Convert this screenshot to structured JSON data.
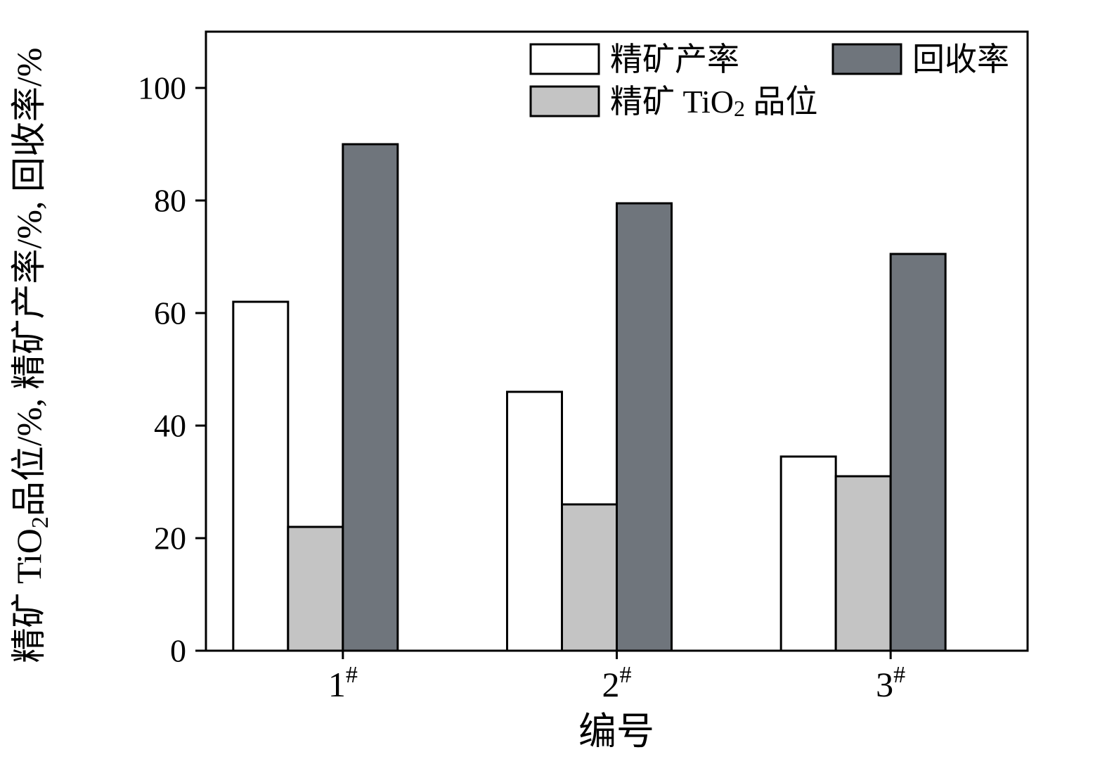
{
  "chart_data": {
    "type": "bar",
    "title": "",
    "xlabel": "编号",
    "ylabel": "精矿 TiO2品位/%, 精矿产率/%, 回收率/%",
    "categories": [
      "1#",
      "2#",
      "3#"
    ],
    "series": [
      {
        "name": "精矿产率",
        "fill": "#ffffff",
        "values": [
          62,
          46,
          34.5
        ]
      },
      {
        "name": "精矿 TiO2 品位",
        "fill": "#c4c4c4",
        "values": [
          22,
          26,
          31
        ]
      },
      {
        "name": "回收率",
        "fill": "#6f757c",
        "values": [
          90,
          79.5,
          70.5
        ]
      }
    ],
    "ylim": [
      0,
      110
    ],
    "yticks": [
      0,
      20,
      40,
      60,
      80,
      100
    ],
    "grid": false,
    "bar_outline": "#000000",
    "axis_color": "#000000",
    "legend": {
      "position": "top-inside",
      "columns": 2,
      "display_order": [
        0,
        2,
        1
      ]
    }
  }
}
